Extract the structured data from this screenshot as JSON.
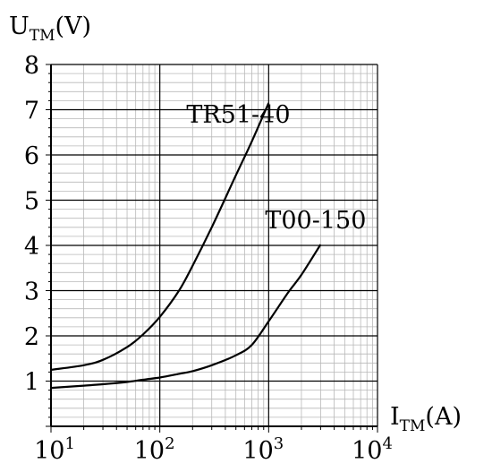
{
  "chart_data": {
    "type": "line",
    "x_scale": "log",
    "xlim": [
      10,
      10000
    ],
    "ylim": [
      0,
      8
    ],
    "xlabel": {
      "main": "I",
      "sub": "TM",
      "unit": "(A)"
    },
    "ylabel": {
      "main": "U",
      "sub": "TM",
      "unit": "(V)"
    },
    "y_ticks": [
      "1",
      "2",
      "3",
      "4",
      "5",
      "6",
      "7",
      "8"
    ],
    "x_ticks": [
      {
        "value": 10,
        "base": "10",
        "exp": "1"
      },
      {
        "value": 100,
        "base": "10",
        "exp": "2"
      },
      {
        "value": 1000,
        "base": "10",
        "exp": "3"
      },
      {
        "value": 10000,
        "base": "10",
        "exp": "4"
      }
    ],
    "grid": true,
    "series": [
      {
        "name": "TR51-40",
        "x": [
          10,
          20,
          30,
          50,
          70,
          100,
          150,
          200,
          300,
          500,
          700,
          1000
        ],
        "y": [
          1.25,
          1.35,
          1.47,
          1.75,
          2.03,
          2.42,
          3.0,
          3.55,
          4.4,
          5.55,
          6.3,
          7.15
        ]
      },
      {
        "name": "T00-150",
        "x": [
          10,
          20,
          30,
          50,
          70,
          100,
          150,
          200,
          300,
          500,
          700,
          1000,
          1500,
          2000,
          3000
        ],
        "y": [
          0.85,
          0.9,
          0.93,
          0.98,
          1.03,
          1.08,
          1.16,
          1.22,
          1.35,
          1.57,
          1.8,
          2.32,
          2.95,
          3.35,
          4.02
        ]
      }
    ]
  }
}
